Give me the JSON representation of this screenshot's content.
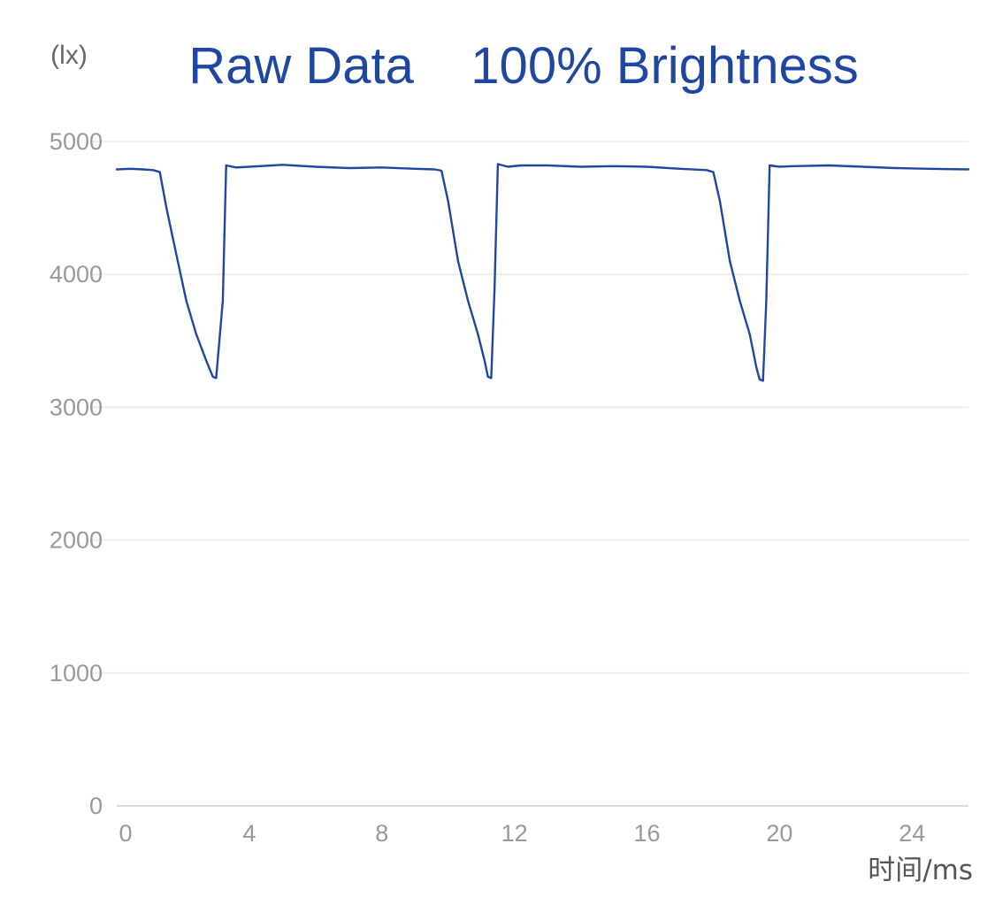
{
  "chart_data": {
    "type": "line",
    "title": "Raw Data    100% Brightness",
    "ylabel": "(lx)",
    "xlabel": "时间/ms",
    "xlim": [
      0,
      25.7
    ],
    "ylim": [
      0,
      5000
    ],
    "x_ticks": [
      "0",
      "4",
      "8",
      "12",
      "16",
      "20",
      "24"
    ],
    "x_tick_values": [
      0,
      4,
      8,
      12,
      16,
      20,
      24
    ],
    "y_ticks": [
      "0",
      "1000",
      "2000",
      "3000",
      "4000",
      "5000"
    ],
    "y_tick_values": [
      0,
      1000,
      2000,
      3000,
      4000,
      5000
    ],
    "grid": true,
    "series": [
      {
        "color": "#1f47a1",
        "x": [
          0,
          0.4,
          0.8,
          1.1,
          1.3,
          1.5,
          1.8,
          2.1,
          2.4,
          2.7,
          2.9,
          3.0,
          3.2,
          3.3,
          3.6,
          4.0,
          5.0,
          6.0,
          7.0,
          8.0,
          9.0,
          9.6,
          9.8,
          10.0,
          10.3,
          10.6,
          10.9,
          11.1,
          11.2,
          11.3,
          11.4,
          11.5,
          11.8,
          12.2,
          13.0,
          14.0,
          15.0,
          16.0,
          17.0,
          17.8,
          18.0,
          18.2,
          18.5,
          18.8,
          19.1,
          19.3,
          19.4,
          19.5,
          19.6,
          19.7,
          20.0,
          20.4,
          21.5,
          22.5,
          23.5,
          24.5,
          25.7
        ],
        "y": [
          4790,
          4795,
          4790,
          4785,
          4770,
          4500,
          4150,
          3800,
          3550,
          3350,
          3230,
          3220,
          3800,
          4820,
          4805,
          4810,
          4825,
          4810,
          4800,
          4805,
          4795,
          4790,
          4780,
          4550,
          4100,
          3800,
          3550,
          3350,
          3230,
          3220,
          3900,
          4830,
          4810,
          4820,
          4820,
          4810,
          4815,
          4810,
          4795,
          4785,
          4770,
          4550,
          4100,
          3800,
          3550,
          3300,
          3210,
          3200,
          3800,
          4820,
          4810,
          4815,
          4820,
          4810,
          4800,
          4795,
          4790
        ]
      }
    ]
  }
}
